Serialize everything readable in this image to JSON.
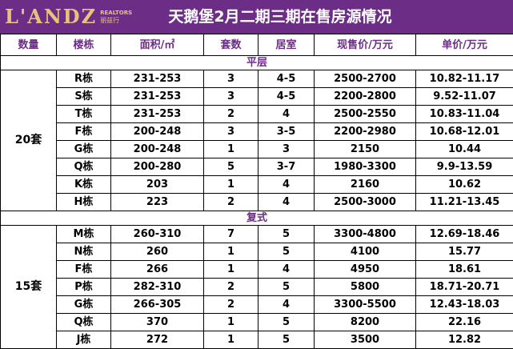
{
  "header": {
    "logo_main": "L'ANDZ",
    "logo_sub1": "REALTORS",
    "logo_sub2": "丽兹行",
    "title": "天鹅堡2月二期三期在售房源情况",
    "bg_color": "#6b2d86",
    "logo_color": "#e6c37a"
  },
  "table": {
    "columns": [
      "数量",
      "楼栋",
      "面积/㎡",
      "套数",
      "居室",
      "现售价/万元",
      "单价/万元"
    ],
    "sections": [
      {
        "label": "平层",
        "count": "20套",
        "rows": [
          {
            "building": "R栋",
            "area": "231-253",
            "units": "3",
            "rooms": "4-5",
            "price": "2500-2700",
            "unit_price": "10.82-11.17"
          },
          {
            "building": "S栋",
            "area": "231-253",
            "units": "3",
            "rooms": "4-5",
            "price": "2200-2800",
            "unit_price": "9.52-11.07"
          },
          {
            "building": "T栋",
            "area": "231-253",
            "units": "2",
            "rooms": "4",
            "price": "2500-2550",
            "unit_price": "10.83-11.04"
          },
          {
            "building": "F栋",
            "area": "200-248",
            "units": "3",
            "rooms": "3-5",
            "price": "2200-2980",
            "unit_price": "10.68-12.01"
          },
          {
            "building": "G栋",
            "area": "200-248",
            "units": "1",
            "rooms": "3",
            "price": "2150",
            "unit_price": "10.44"
          },
          {
            "building": "Q栋",
            "area": "200-280",
            "units": "5",
            "rooms": "3-7",
            "price": "1980-3300",
            "unit_price": "9.9-13.59"
          },
          {
            "building": "K栋",
            "area": "203",
            "units": "1",
            "rooms": "4",
            "price": "2160",
            "unit_price": "10.62"
          },
          {
            "building": "H栋",
            "area": "223",
            "units": "2",
            "rooms": "4",
            "price": "2500-3000",
            "unit_price": "11.21-13.45"
          }
        ]
      },
      {
        "label": "复式",
        "count": "15套",
        "rows": [
          {
            "building": "M栋",
            "area": "260-310",
            "units": "7",
            "rooms": "5",
            "price": "3300-4800",
            "unit_price": "12.69-18.46"
          },
          {
            "building": "N栋",
            "area": "260",
            "units": "1",
            "rooms": "5",
            "price": "4100",
            "unit_price": "15.77"
          },
          {
            "building": "F栋",
            "area": "266",
            "units": "1",
            "rooms": "4",
            "price": "4950",
            "unit_price": "18.61"
          },
          {
            "building": "P栋",
            "area": "282-310",
            "units": "2",
            "rooms": "5",
            "price": "5800",
            "unit_price": "18.71-20.71"
          },
          {
            "building": "G栋",
            "area": "266-305",
            "units": "2",
            "rooms": "4",
            "price": "3300-5500",
            "unit_price": "12.43-18.03"
          },
          {
            "building": "Q栋",
            "area": "370",
            "units": "1",
            "rooms": "5",
            "price": "8200",
            "unit_price": "22.16"
          },
          {
            "building": "J栋",
            "area": "272",
            "units": "1",
            "rooms": "5",
            "price": "3500",
            "unit_price": "12.82"
          }
        ]
      }
    ]
  }
}
